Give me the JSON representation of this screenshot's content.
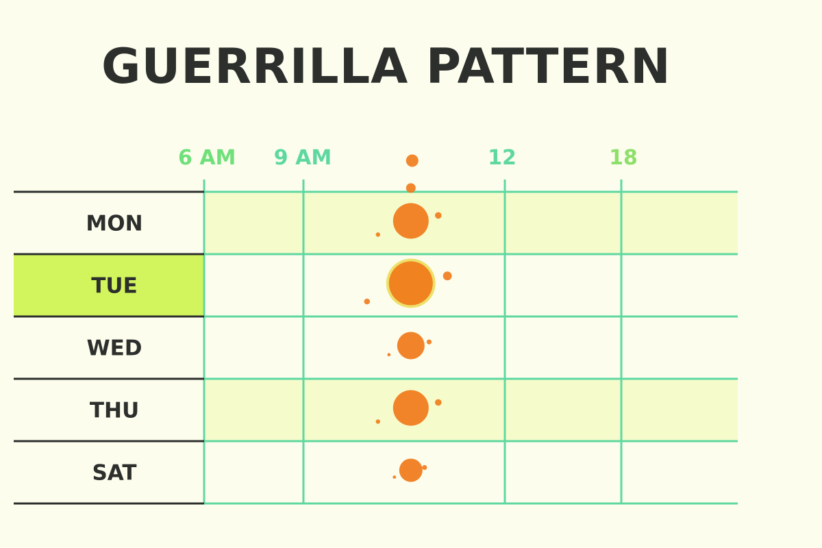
{
  "chart_data": {
    "type": "scatter",
    "title": "GUERRILLA PATTERN",
    "x_ticks": [
      {
        "label": "6 AM",
        "hour": 6,
        "color": "#6fe07a"
      },
      {
        "label": "9 AM",
        "hour": 9,
        "color": "#5fd8a0"
      },
      {
        "label": "12",
        "hour": 12,
        "color": "#5fd8a0"
      },
      {
        "label": "18",
        "hour": 18,
        "color": "#8ee06a"
      }
    ],
    "rows": [
      {
        "label": "MON",
        "shaded": true,
        "highlighted": false
      },
      {
        "label": "TUE",
        "shaded": false,
        "highlighted": true
      },
      {
        "label": "WED",
        "shaded": false,
        "highlighted": false
      },
      {
        "label": "THU",
        "shaded": true,
        "highlighted": false
      },
      {
        "label": "SAT",
        "shaded": false,
        "highlighted": false
      }
    ],
    "events": [
      {
        "day": "MON",
        "hour": 10.6,
        "magnitude": 3
      },
      {
        "day": "TUE",
        "hour": 10.6,
        "magnitude": 4
      },
      {
        "day": "WED",
        "hour": 10.6,
        "magnitude": 2
      },
      {
        "day": "THU",
        "hour": 10.6,
        "magnitude": 3
      },
      {
        "day": "SAT",
        "hour": 10.6,
        "magnitude": 1.5
      }
    ],
    "colors": {
      "grid": "#5fd8a0",
      "row_shade": "#f6fbcc",
      "highlight": "#d2f55e",
      "marker": "#f07a1a",
      "marker_halo": "#e8d84a",
      "row_rule": "#2c2f2c"
    }
  }
}
